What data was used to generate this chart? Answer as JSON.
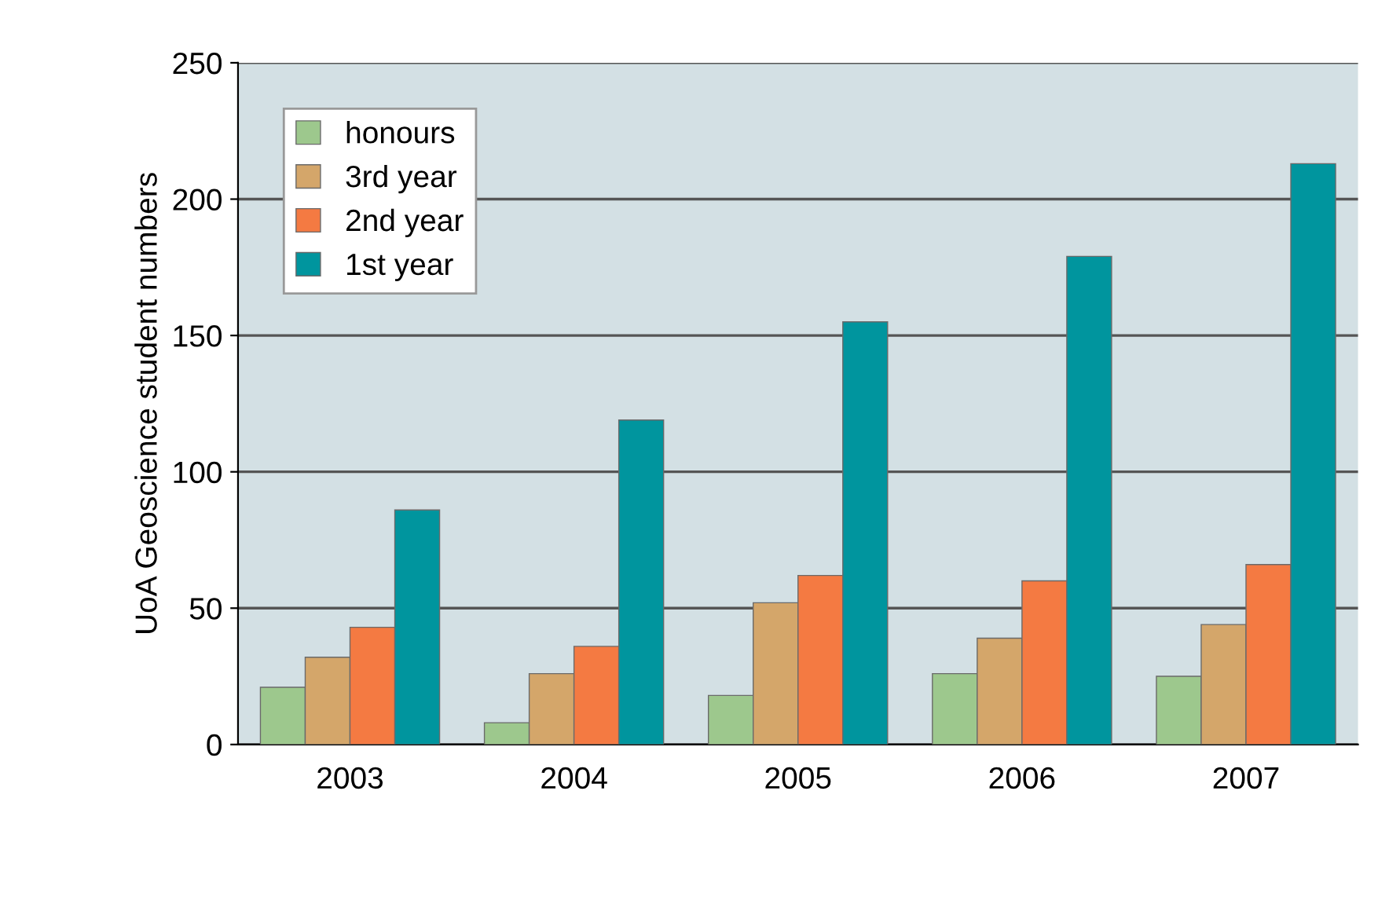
{
  "chart_data": {
    "type": "bar",
    "ylabel": "UoA Geoscience student numbers",
    "categories": [
      "2003",
      "2004",
      "2005",
      "2006",
      "2007"
    ],
    "series": [
      {
        "name": "honours",
        "color": "#9dc88d",
        "values": [
          21,
          8,
          18,
          26,
          25
        ]
      },
      {
        "name": "3rd year",
        "color": "#d4a66a",
        "values": [
          32,
          26,
          52,
          39,
          44
        ]
      },
      {
        "name": "2nd year",
        "color": "#f47a42",
        "values": [
          43,
          36,
          62,
          60,
          66
        ]
      },
      {
        "name": "1st year",
        "color": "#00959e",
        "values": [
          86,
          119,
          155,
          179,
          213
        ]
      }
    ],
    "ylim": [
      0,
      250
    ],
    "yticks": [
      0,
      50,
      100,
      150,
      200,
      250
    ],
    "grid": "y",
    "legend": "top left"
  }
}
